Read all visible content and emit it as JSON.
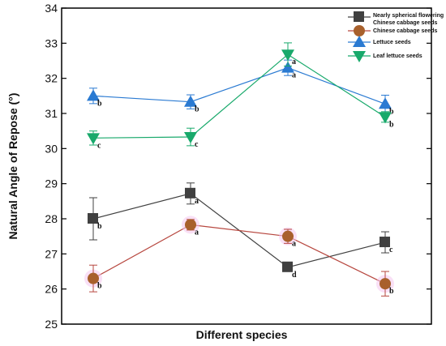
{
  "chart_data": {
    "type": "line",
    "x": [
      1,
      2,
      3,
      4
    ],
    "xlabel": "Different species",
    "ylabel": "Natural Angle of Repose (°)",
    "ylim": [
      25,
      34
    ],
    "yticks": [
      25,
      26,
      27,
      28,
      29,
      30,
      31,
      32,
      33,
      34
    ],
    "legend_position": "top-right",
    "series": [
      {
        "name": "Nearly spherical flowering Chinese cabbage seeds",
        "name_lines": [
          "Nearly spherical flowering",
          "Chinese cabbage seeds"
        ],
        "values": [
          28.0,
          28.72,
          26.62,
          27.33
        ],
        "errors": [
          0.6,
          0.3,
          0.1,
          0.3
        ],
        "letters": [
          "b",
          "a",
          "d",
          "c"
        ],
        "color": "#404040",
        "marker": "square"
      },
      {
        "name": "Chinese cabbage seeds",
        "values": [
          26.3,
          27.83,
          27.5,
          26.15
        ],
        "errors": [
          0.38,
          0.15,
          0.2,
          0.35
        ],
        "letters": [
          "b",
          "a",
          "a",
          "b"
        ],
        "color": "#b7473f",
        "marker_color": "#a8602c",
        "marker": "circle"
      },
      {
        "name": "Lettuce seeds",
        "values": [
          31.5,
          31.33,
          32.3,
          31.27
        ],
        "errors": [
          0.22,
          0.2,
          0.22,
          0.25
        ],
        "letters": [
          "b",
          "b",
          "a",
          "b"
        ],
        "color": "#2a7ad2",
        "marker": "triangle-up"
      },
      {
        "name": "Leaf lettuce seeds",
        "values": [
          30.3,
          30.33,
          32.68,
          30.9
        ],
        "errors": [
          0.2,
          0.25,
          0.33,
          0.15
        ],
        "letters": [
          "c",
          "c",
          "a",
          "b"
        ],
        "color": "#18a96b",
        "marker": "triangle-down"
      }
    ]
  }
}
